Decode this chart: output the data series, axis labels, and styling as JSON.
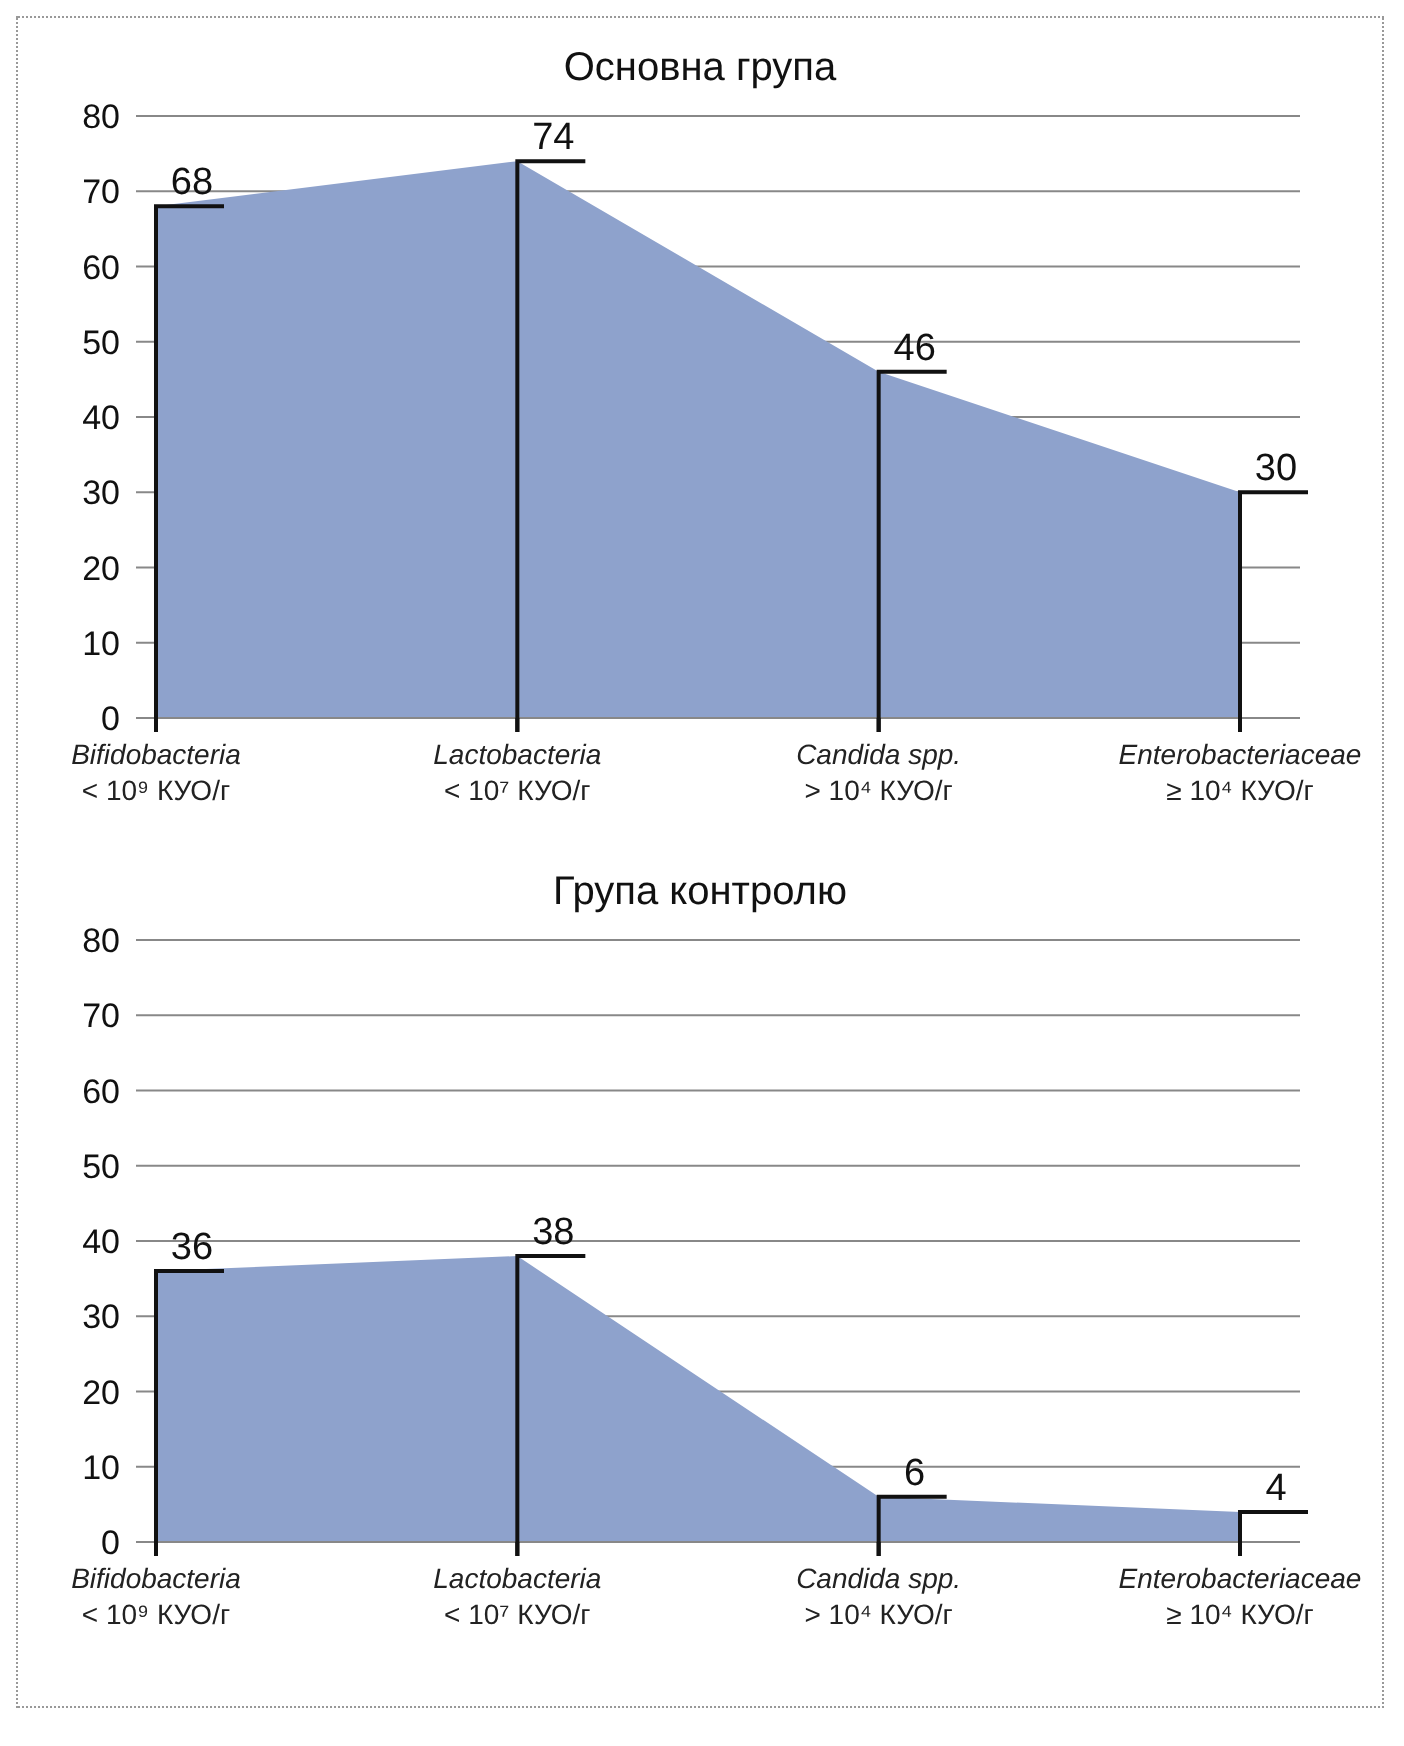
{
  "chart_data": [
    {
      "type": "area",
      "title": "Основна група",
      "categories": [
        "Bifidobacteria\n< 10⁹ КУО/г",
        "Lactobacteria\n< 10⁷ КУО/г",
        "Candida spp.\n> 10⁴ КУО/г",
        "Enterobacteriaceae\n≥ 10⁴ КУО/г"
      ],
      "values": [
        68,
        74,
        46,
        30
      ],
      "color": "#8ea2cc",
      "ylim": [
        0,
        80
      ],
      "yticks": [
        0,
        10,
        20,
        30,
        40,
        50,
        60,
        70,
        80
      ],
      "grid": "y",
      "data_labels": true
    },
    {
      "type": "area",
      "title": "Група контролю",
      "categories": [
        "Bifidobacteria\n< 10⁹ КУО/г",
        "Lactobacteria\n< 10⁷ КУО/г",
        "Candida spp.\n> 10⁴ КУО/г",
        "Enterobacteriaceae\n≥ 10⁴ КУО/г"
      ],
      "values": [
        36,
        38,
        6,
        4
      ],
      "color": "#8ea2cc",
      "ylim": [
        0,
        80
      ],
      "yticks": [
        0,
        10,
        20,
        30,
        40,
        50,
        60,
        70,
        80
      ],
      "grid": "y",
      "data_labels": true
    }
  ]
}
